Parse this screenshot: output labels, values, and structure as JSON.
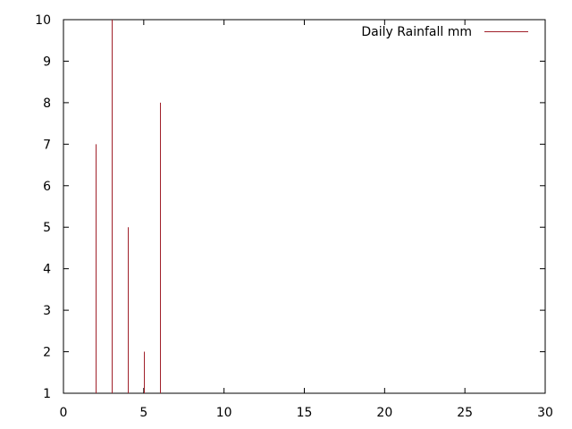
{
  "chart_data": {
    "type": "bar",
    "style": "impulses",
    "x": [
      2,
      3,
      4,
      5,
      6
    ],
    "series": [
      {
        "name": "Daily Rainfall mm",
        "values": [
          7,
          10,
          5,
          2,
          8
        ],
        "color": "#a0202a"
      }
    ],
    "title": "",
    "xlabel": "",
    "ylabel": "",
    "xlim": [
      0,
      30
    ],
    "ylim": [
      1,
      10
    ],
    "xticks": [
      "0",
      "5",
      "10",
      "15",
      "20",
      "25",
      "30"
    ],
    "yticks": [
      "1",
      "2",
      "3",
      "4",
      "5",
      "6",
      "7",
      "8",
      "9",
      "10"
    ],
    "grid": false,
    "legend_position": "top-right"
  }
}
